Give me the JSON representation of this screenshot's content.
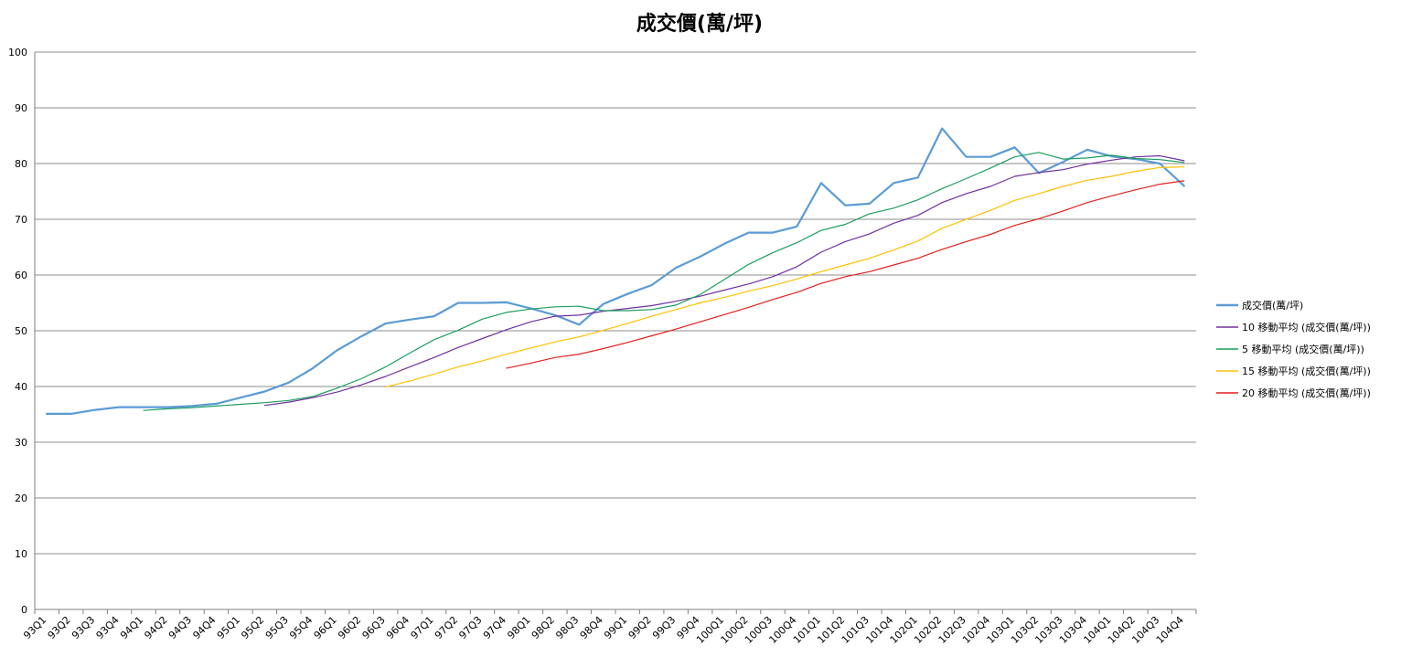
{
  "chart_data": {
    "type": "line",
    "title": "成交價(萬/坪)",
    "xlabel": "",
    "ylabel": "",
    "ylim": [
      0,
      100
    ],
    "yticks": [
      0,
      10,
      20,
      30,
      40,
      50,
      60,
      70,
      80,
      90,
      100
    ],
    "grid": true,
    "legend_position": "right",
    "categories": [
      "93Q1",
      "93Q2",
      "93Q3",
      "93Q4",
      "94Q1",
      "94Q2",
      "94Q3",
      "94Q4",
      "95Q1",
      "95Q2",
      "95Q3",
      "95Q4",
      "96Q1",
      "96Q2",
      "96Q3",
      "96Q4",
      "97Q1",
      "97Q2",
      "97Q3",
      "97Q4",
      "98Q1",
      "98Q2",
      "98Q3",
      "98Q4",
      "99Q1",
      "99Q2",
      "99Q3",
      "99Q4",
      "100Q1",
      "100Q2",
      "100Q3",
      "100Q4",
      "101Q1",
      "101Q2",
      "101Q3",
      "101Q4",
      "102Q1",
      "102Q2",
      "102Q3",
      "102Q4",
      "103Q1",
      "103Q2",
      "103Q3",
      "103Q4",
      "104Q1",
      "104Q2",
      "104Q3",
      "104Q4"
    ],
    "series": [
      {
        "name": "成交價(萬/坪)",
        "color": "#5b9bd5",
        "width": 2.2,
        "values": [
          35.1,
          35.1,
          35.8,
          36.3,
          36.3,
          36.3,
          36.5,
          36.9,
          38.0,
          39.1,
          40.7,
          43.3,
          46.5,
          49.0,
          51.3,
          52.0,
          52.6,
          55.0,
          55.0,
          55.1,
          54.0,
          52.8,
          51.1,
          54.8,
          56.6,
          58.2,
          61.3,
          63.3,
          65.6,
          67.6,
          67.6,
          68.7,
          76.5,
          72.5,
          72.8,
          76.5,
          77.5,
          86.3,
          81.2,
          81.2,
          82.9,
          78.3,
          80.3,
          82.5,
          81.3,
          80.8,
          80.0,
          76.0
        ]
      },
      {
        "name": "10 移動平均 (成交價(萬/坪))",
        "color": "#7030a0",
        "width": 1.2,
        "values": [
          null,
          null,
          null,
          null,
          null,
          null,
          null,
          null,
          null,
          36.6,
          37.2,
          38.0,
          39.0,
          40.3,
          41.8,
          43.5,
          45.2,
          47.0,
          48.6,
          50.2,
          51.6,
          52.6,
          52.8,
          53.5,
          54.0,
          54.5,
          55.3,
          56.2,
          57.3,
          58.4,
          59.7,
          61.5,
          64.1,
          66.0,
          67.4,
          69.3,
          70.7,
          73.0,
          74.6,
          75.9,
          77.7,
          78.4,
          78.9,
          79.9,
          80.6,
          81.2,
          81.4,
          80.5
        ]
      },
      {
        "name": "5 移動平均 (成交價(萬/坪))",
        "color": "#1a9e5f",
        "width": 1.2,
        "values": [
          null,
          null,
          null,
          null,
          35.7,
          36.0,
          36.2,
          36.5,
          36.8,
          37.1,
          37.5,
          38.2,
          39.7,
          41.4,
          43.5,
          46.0,
          48.4,
          50.1,
          52.1,
          53.3,
          53.9,
          54.3,
          54.4,
          53.6,
          53.6,
          53.8,
          54.6,
          56.5,
          59.2,
          61.9,
          64.0,
          65.8,
          68.0,
          69.1,
          71.0,
          72.0,
          73.5,
          75.5,
          77.3,
          79.2,
          81.2,
          82.0,
          80.8,
          81.0,
          81.5,
          80.9,
          80.7,
          80.2
        ]
      },
      {
        "name": "15 移動平均 (成交價(萬/坪))",
        "color": "#ffc000",
        "width": 1.2,
        "values": [
          null,
          null,
          null,
          null,
          null,
          null,
          null,
          null,
          null,
          null,
          null,
          null,
          null,
          null,
          39.9,
          41.0,
          42.2,
          43.5,
          44.6,
          45.8,
          46.9,
          48.0,
          48.9,
          50.1,
          51.3,
          52.6,
          53.8,
          55.0,
          56.0,
          57.1,
          58.1,
          59.3,
          60.6,
          61.8,
          63.0,
          64.5,
          66.1,
          68.4,
          70.0,
          71.6,
          73.4,
          74.6,
          75.9,
          77.0,
          77.7,
          78.6,
          79.3,
          79.4
        ]
      },
      {
        "name": "20 移動平均 (成交價(萬/坪))",
        "color": "#e0201b",
        "width": 1.2,
        "values": [
          null,
          null,
          null,
          null,
          null,
          null,
          null,
          null,
          null,
          null,
          null,
          null,
          null,
          null,
          null,
          null,
          null,
          null,
          null,
          43.3,
          44.2,
          45.2,
          45.8,
          46.8,
          47.9,
          49.1,
          50.3,
          51.6,
          52.9,
          54.2,
          55.6,
          56.9,
          58.5,
          59.7,
          60.6,
          61.8,
          63.0,
          64.6,
          66.0,
          67.3,
          68.9,
          70.1,
          71.5,
          73.0,
          74.2,
          75.3,
          76.3,
          76.9
        ]
      }
    ]
  }
}
